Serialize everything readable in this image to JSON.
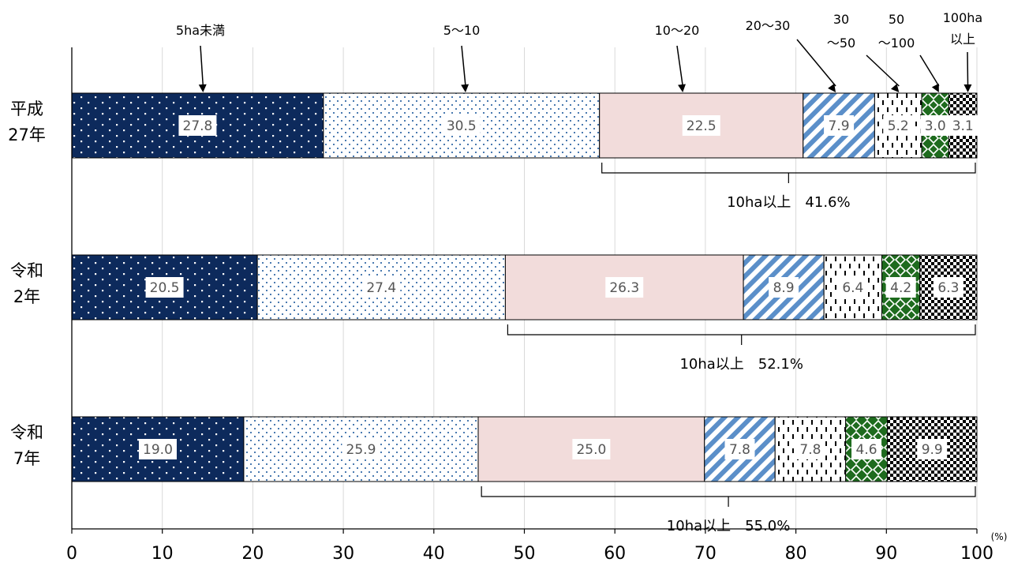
{
  "chart_data": {
    "type": "bar",
    "orientation": "horizontal",
    "stacked": true,
    "unit_label": "(%)",
    "xlim": [
      0,
      100
    ],
    "xticks": [
      "0",
      "10",
      "20",
      "30",
      "40",
      "50",
      "60",
      "70",
      "80",
      "90",
      "100"
    ],
    "grid": true,
    "categories": [
      "平成\n27年",
      "令和\n2年",
      "令和\n7年"
    ],
    "series": [
      {
        "name": "5ha未満",
        "values": [
          27.8,
          20.5,
          19.0
        ],
        "pattern": "dots-dark",
        "color": "#0d2a5c"
      },
      {
        "name": "5～10",
        "values": [
          30.5,
          27.4,
          25.9
        ],
        "pattern": "dots-light",
        "color": "#4a7ab0"
      },
      {
        "name": "10～20",
        "values": [
          22.5,
          26.3,
          25.0
        ],
        "pattern": "solid",
        "color": "#f2dcdb"
      },
      {
        "name": "20～30",
        "values": [
          7.9,
          8.9,
          7.8
        ],
        "pattern": "diagonal",
        "color": "#5b8fc9"
      },
      {
        "name": "30\n～50",
        "values": [
          5.2,
          6.4,
          7.8
        ],
        "pattern": "dashes",
        "color": "#000000"
      },
      {
        "name": "50\n～100",
        "values": [
          3.0,
          4.2,
          4.6
        ],
        "pattern": "diamond",
        "color": "#1e6b1e"
      },
      {
        "name": "100ha\n以上",
        "values": [
          3.1,
          6.3,
          9.9
        ],
        "pattern": "checker",
        "color": "#000000"
      }
    ],
    "value_labels": [
      [
        "27.8",
        "30.5",
        "22.5",
        "7.9",
        "5.2",
        "3.0",
        "3.1"
      ],
      [
        "20.5",
        "27.4",
        "26.3",
        "8.9",
        "6.4",
        "4.2",
        "6.3"
      ],
      [
        "19.0",
        "25.9",
        "25.0",
        "7.8",
        "7.8",
        "4.6",
        "9.9"
      ]
    ],
    "brackets": [
      {
        "from": 58.3,
        "to": 100,
        "label": "10ha以上　41.6%"
      },
      {
        "from": 47.9,
        "to": 100,
        "label": "10ha以上　52.1%"
      },
      {
        "from": 45.0,
        "to": 100,
        "label": "10ha以上　55.0%"
      }
    ],
    "legend": {
      "placement": "top",
      "arrow_targets": [
        14.5,
        43.5,
        67.5,
        84.4,
        91.4,
        95.8,
        99.0
      ]
    }
  }
}
